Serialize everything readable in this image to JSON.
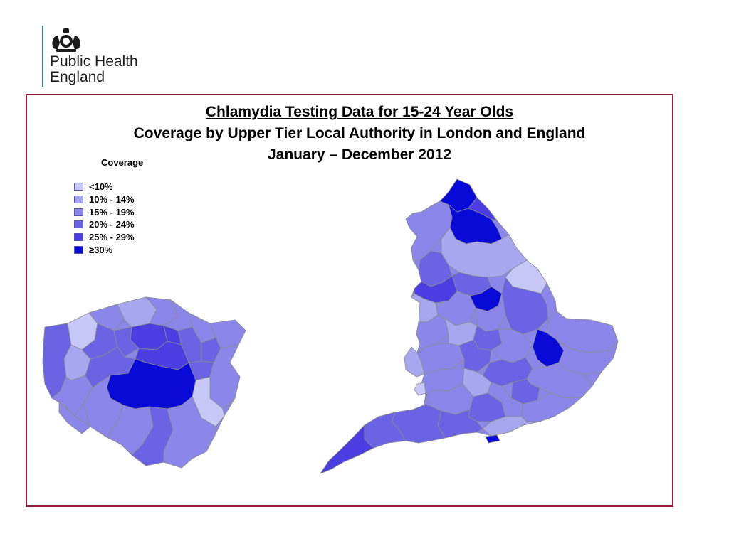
{
  "brand": {
    "name_line1": "Public Health",
    "name_line2": "England",
    "bar_color": "#2e8a7e"
  },
  "title": {
    "line1": "Chlamydia Testing Data for 15-24 Year Olds",
    "line2": "Coverage by Upper Tier Local Authority in London and England",
    "line3": "January – December 2012"
  },
  "legend": {
    "title": "Coverage",
    "items": [
      {
        "label": "<10%",
        "color": "#c8c8f8"
      },
      {
        "label": "10% - 14%",
        "color": "#a7a7f0"
      },
      {
        "label": "15% - 19%",
        "color": "#8b86ea"
      },
      {
        "label": "20% - 24%",
        "color": "#6a64e4"
      },
      {
        "label": "25% - 29%",
        "color": "#4a3ee0"
      },
      {
        "label": "≥30%",
        "color": "#0a0ad8"
      }
    ]
  },
  "colors": {
    "frame": "#9b1b3b",
    "boundary": "#8c8c8c"
  },
  "maps": [
    "london-map",
    "england-map"
  ]
}
